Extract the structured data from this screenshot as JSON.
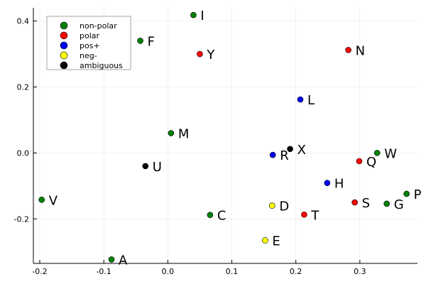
{
  "chart_data": {
    "type": "scatter",
    "xlim": [
      -0.21,
      0.39
    ],
    "ylim": [
      -0.335,
      0.44
    ],
    "xticks": [
      -0.2,
      -0.1,
      0.0,
      0.1,
      0.2,
      0.3
    ],
    "xtick_labels": [
      "-0.2",
      "-0.1",
      "0.0",
      "0.1",
      "0.2",
      "0.3"
    ],
    "yticks": [
      -0.2,
      0.0,
      0.2,
      0.4
    ],
    "ytick_labels": [
      "-0.2",
      "0.0",
      "0.2",
      "0.4"
    ],
    "grid": true,
    "legend_position": "top-left",
    "series": [
      {
        "name": "non-polar",
        "color": "#008000",
        "points": [
          {
            "label": "I",
            "x": 0.04,
            "y": 0.418
          },
          {
            "label": "F",
            "x": -0.043,
            "y": 0.34
          },
          {
            "label": "M",
            "x": 0.005,
            "y": 0.06
          },
          {
            "label": "W",
            "x": 0.327,
            "y": 0.0
          },
          {
            "label": "V",
            "x": -0.197,
            "y": -0.142
          },
          {
            "label": "P",
            "x": 0.373,
            "y": -0.124
          },
          {
            "label": "G",
            "x": 0.342,
            "y": -0.154
          },
          {
            "label": "C",
            "x": 0.066,
            "y": -0.188
          },
          {
            "label": "A",
            "x": -0.088,
            "y": -0.323
          }
        ]
      },
      {
        "name": "polar",
        "color": "#ff0000",
        "points": [
          {
            "label": "Y",
            "x": 0.05,
            "y": 0.3
          },
          {
            "label": "N",
            "x": 0.282,
            "y": 0.312
          },
          {
            "label": "Q",
            "x": 0.299,
            "y": -0.025
          },
          {
            "label": "S",
            "x": 0.292,
            "y": -0.15
          },
          {
            "label": "T",
            "x": 0.213,
            "y": -0.187
          }
        ]
      },
      {
        "name": "pos+",
        "color": "#0000ff",
        "points": [
          {
            "label": "L",
            "x": 0.207,
            "y": 0.162
          },
          {
            "label": "R",
            "x": 0.164,
            "y": -0.006
          },
          {
            "label": "H",
            "x": 0.249,
            "y": -0.091
          }
        ]
      },
      {
        "name": "neg-",
        "color": "#ffff00",
        "points": [
          {
            "label": "D",
            "x": 0.163,
            "y": -0.16
          },
          {
            "label": "E",
            "x": 0.152,
            "y": -0.265
          }
        ]
      },
      {
        "name": "ambiguous",
        "color": "#000000",
        "points": [
          {
            "label": "X",
            "x": 0.191,
            "y": 0.012
          },
          {
            "label": "U",
            "x": -0.035,
            "y": -0.04
          }
        ]
      }
    ]
  }
}
